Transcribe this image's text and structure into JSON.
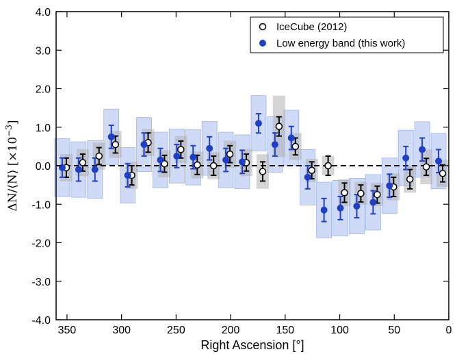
{
  "chart_data": {
    "type": "scatter",
    "xlabel": "Right Ascension [°]",
    "ylabel": "ΔN/⟨N⟩ [×10",
    "ylabel_exponent": "−3",
    "ylabel_suffix": "]",
    "xlim": [
      360,
      0
    ],
    "ylim": [
      -4.0,
      4.0
    ],
    "xticks": [
      350,
      300,
      250,
      200,
      150,
      100,
      50,
      0
    ],
    "yticks": [
      -4.0,
      -3.0,
      -2.0,
      -1.0,
      0.0,
      1.0,
      2.0,
      3.0,
      4.0
    ],
    "ytick_labels": [
      "-4.0",
      "-3.0",
      "-2.0",
      "-1.0",
      "0.0",
      "1.0",
      "2.0",
      "3.0",
      "4.0"
    ],
    "reference_line": 0.0,
    "legend_position": "top-right",
    "series": [
      {
        "name": "IceCube (2012)",
        "marker": "open-circle",
        "color": "#000000",
        "band_color": "#b0b0b0",
        "x": [
          352.5,
          337.5,
          322.5,
          307.5,
          292.5,
          277.5,
          262.5,
          247.5,
          232.5,
          217.5,
          202.5,
          187.5,
          172.5,
          157.5,
          142.5,
          127.5,
          112.5,
          97.5,
          82.5,
          67.5,
          52.5,
          37.5,
          22.5,
          7.5
        ],
        "y": [
          -0.05,
          0.08,
          0.25,
          0.55,
          -0.25,
          0.6,
          0.05,
          0.42,
          0.02,
          0.0,
          0.3,
          0.08,
          -0.15,
          1.02,
          0.5,
          -0.12,
          0.0,
          -0.7,
          -0.72,
          -0.75,
          -0.55,
          -0.35,
          -0.03,
          -0.2
        ],
        "err": [
          0.25,
          0.22,
          0.22,
          0.22,
          0.25,
          0.25,
          0.22,
          0.22,
          0.25,
          0.25,
          0.22,
          0.22,
          0.25,
          0.25,
          0.22,
          0.22,
          0.25,
          0.25,
          0.22,
          0.22,
          0.25,
          0.25,
          0.22,
          0.22
        ],
        "sys": [
          0.35,
          0.35,
          0.35,
          0.35,
          0.35,
          0.35,
          0.35,
          0.35,
          0.35,
          0.35,
          0.35,
          0.35,
          0.45,
          0.8,
          0.35,
          0.3,
          0.25,
          0.35,
          0.3,
          0.3,
          0.35,
          0.35,
          0.45,
          0.35
        ]
      },
      {
        "name": "Low energy band (this work)",
        "marker": "filled-circle",
        "color": "#1f3fc4",
        "band_color": "#c7d4f5",
        "x": [
          352.5,
          337.5,
          322.5,
          307.5,
          292.5,
          277.5,
          262.5,
          247.5,
          232.5,
          217.5,
          202.5,
          187.5,
          172.5,
          157.5,
          142.5,
          127.5,
          112.5,
          97.5,
          82.5,
          67.5,
          52.5,
          37.5,
          22.5,
          7.5
        ],
        "y": [
          -0.05,
          -0.1,
          -0.1,
          0.75,
          -0.25,
          0.55,
          0.15,
          0.25,
          0.22,
          0.45,
          0.15,
          0.1,
          1.1,
          0.55,
          0.72,
          -0.3,
          -1.15,
          -1.1,
          -1.05,
          -0.95,
          -0.52,
          0.2,
          0.42,
          0.12
        ],
        "err": [
          0.25,
          0.3,
          0.3,
          0.3,
          0.3,
          0.3,
          0.3,
          0.3,
          0.3,
          0.3,
          0.3,
          0.3,
          0.25,
          0.3,
          0.3,
          0.3,
          0.3,
          0.3,
          0.3,
          0.3,
          0.3,
          0.3,
          0.3,
          0.3
        ],
        "sys": [
          0.75,
          0.72,
          0.75,
          0.72,
          0.72,
          0.7,
          0.72,
          0.7,
          0.72,
          0.7,
          0.72,
          0.7,
          0.72,
          0.72,
          0.72,
          0.72,
          0.72,
          0.72,
          0.72,
          0.72,
          0.72,
          0.72,
          0.72,
          0.72
        ]
      }
    ]
  }
}
